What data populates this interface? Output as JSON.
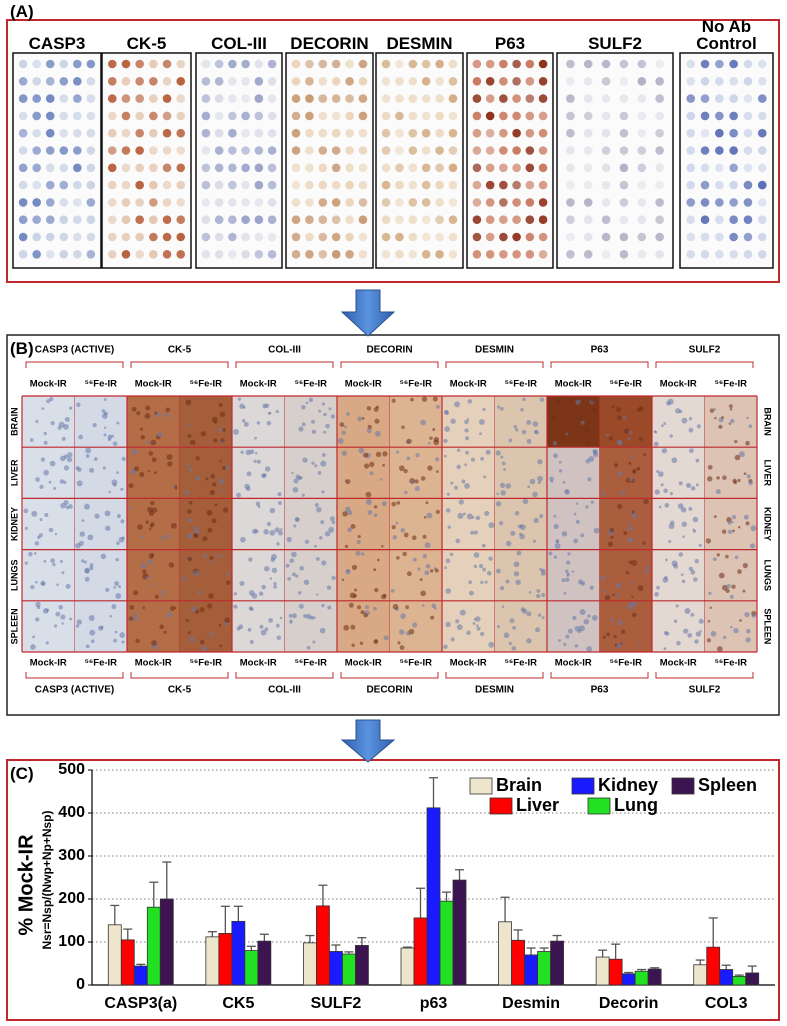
{
  "panel_a": {
    "label": "(A)",
    "columns": [
      "CASP3",
      "CK-5",
      "COL-III",
      "DECORIN",
      "DESMIN",
      "P63",
      "SULF2",
      "No Ab Control"
    ]
  },
  "panel_b": {
    "label": "(B)",
    "stains": [
      "CASP3 (ACTIVE)",
      "CK-5",
      "COL-III",
      "DECORIN",
      "DESMIN",
      "P63",
      "SULF2"
    ],
    "conditions": [
      "Mock-IR",
      "⁵⁶Fe-IR"
    ],
    "organs": [
      "BRAIN",
      "LIVER",
      "KIDNEY",
      "LUNGS",
      "SPLEEN"
    ]
  },
  "panel_c": {
    "label": "(C)"
  },
  "chart_data": {
    "type": "bar",
    "ylabel": "% Mock-IR",
    "ylabel_note": "Nsr=Nsp/(Nwp+Np+Nsp)",
    "categories": [
      "CASP3(a)",
      "CK5",
      "SULF2",
      "p63",
      "Desmin",
      "Decorin",
      "COL3"
    ],
    "series": [
      {
        "name": "Brain",
        "color": "#eee6cc",
        "values": [
          140,
          112,
          98,
          86,
          147,
          65,
          47
        ],
        "errors": [
          45,
          12,
          17,
          2,
          57,
          16,
          11
        ]
      },
      {
        "name": "Liver",
        "color": "#ff0000",
        "values": [
          105,
          120,
          184,
          156,
          104,
          60,
          88
        ],
        "errors": [
          25,
          63,
          48,
          69,
          24,
          35,
          68
        ]
      },
      {
        "name": "Kidney",
        "color": "#1a1aff",
        "values": [
          44,
          148,
          78,
          412,
          70,
          26,
          36
        ],
        "errors": [
          4,
          35,
          15,
          70,
          16,
          3,
          10
        ]
      },
      {
        "name": "Lung",
        "color": "#22e022",
        "values": [
          181,
          80,
          72,
          195,
          78,
          32,
          20
        ],
        "errors": [
          58,
          10,
          5,
          21,
          8,
          4,
          3
        ]
      },
      {
        "name": "Spleen",
        "color": "#3c1450",
        "values": [
          200,
          102,
          92,
          244,
          102,
          37,
          28
        ],
        "errors": [
          86,
          16,
          18,
          24,
          13,
          3,
          16
        ]
      }
    ],
    "ylim": [
      0,
      500
    ],
    "yticks": [
      0,
      100,
      200,
      300,
      400,
      500
    ],
    "grid": true
  }
}
